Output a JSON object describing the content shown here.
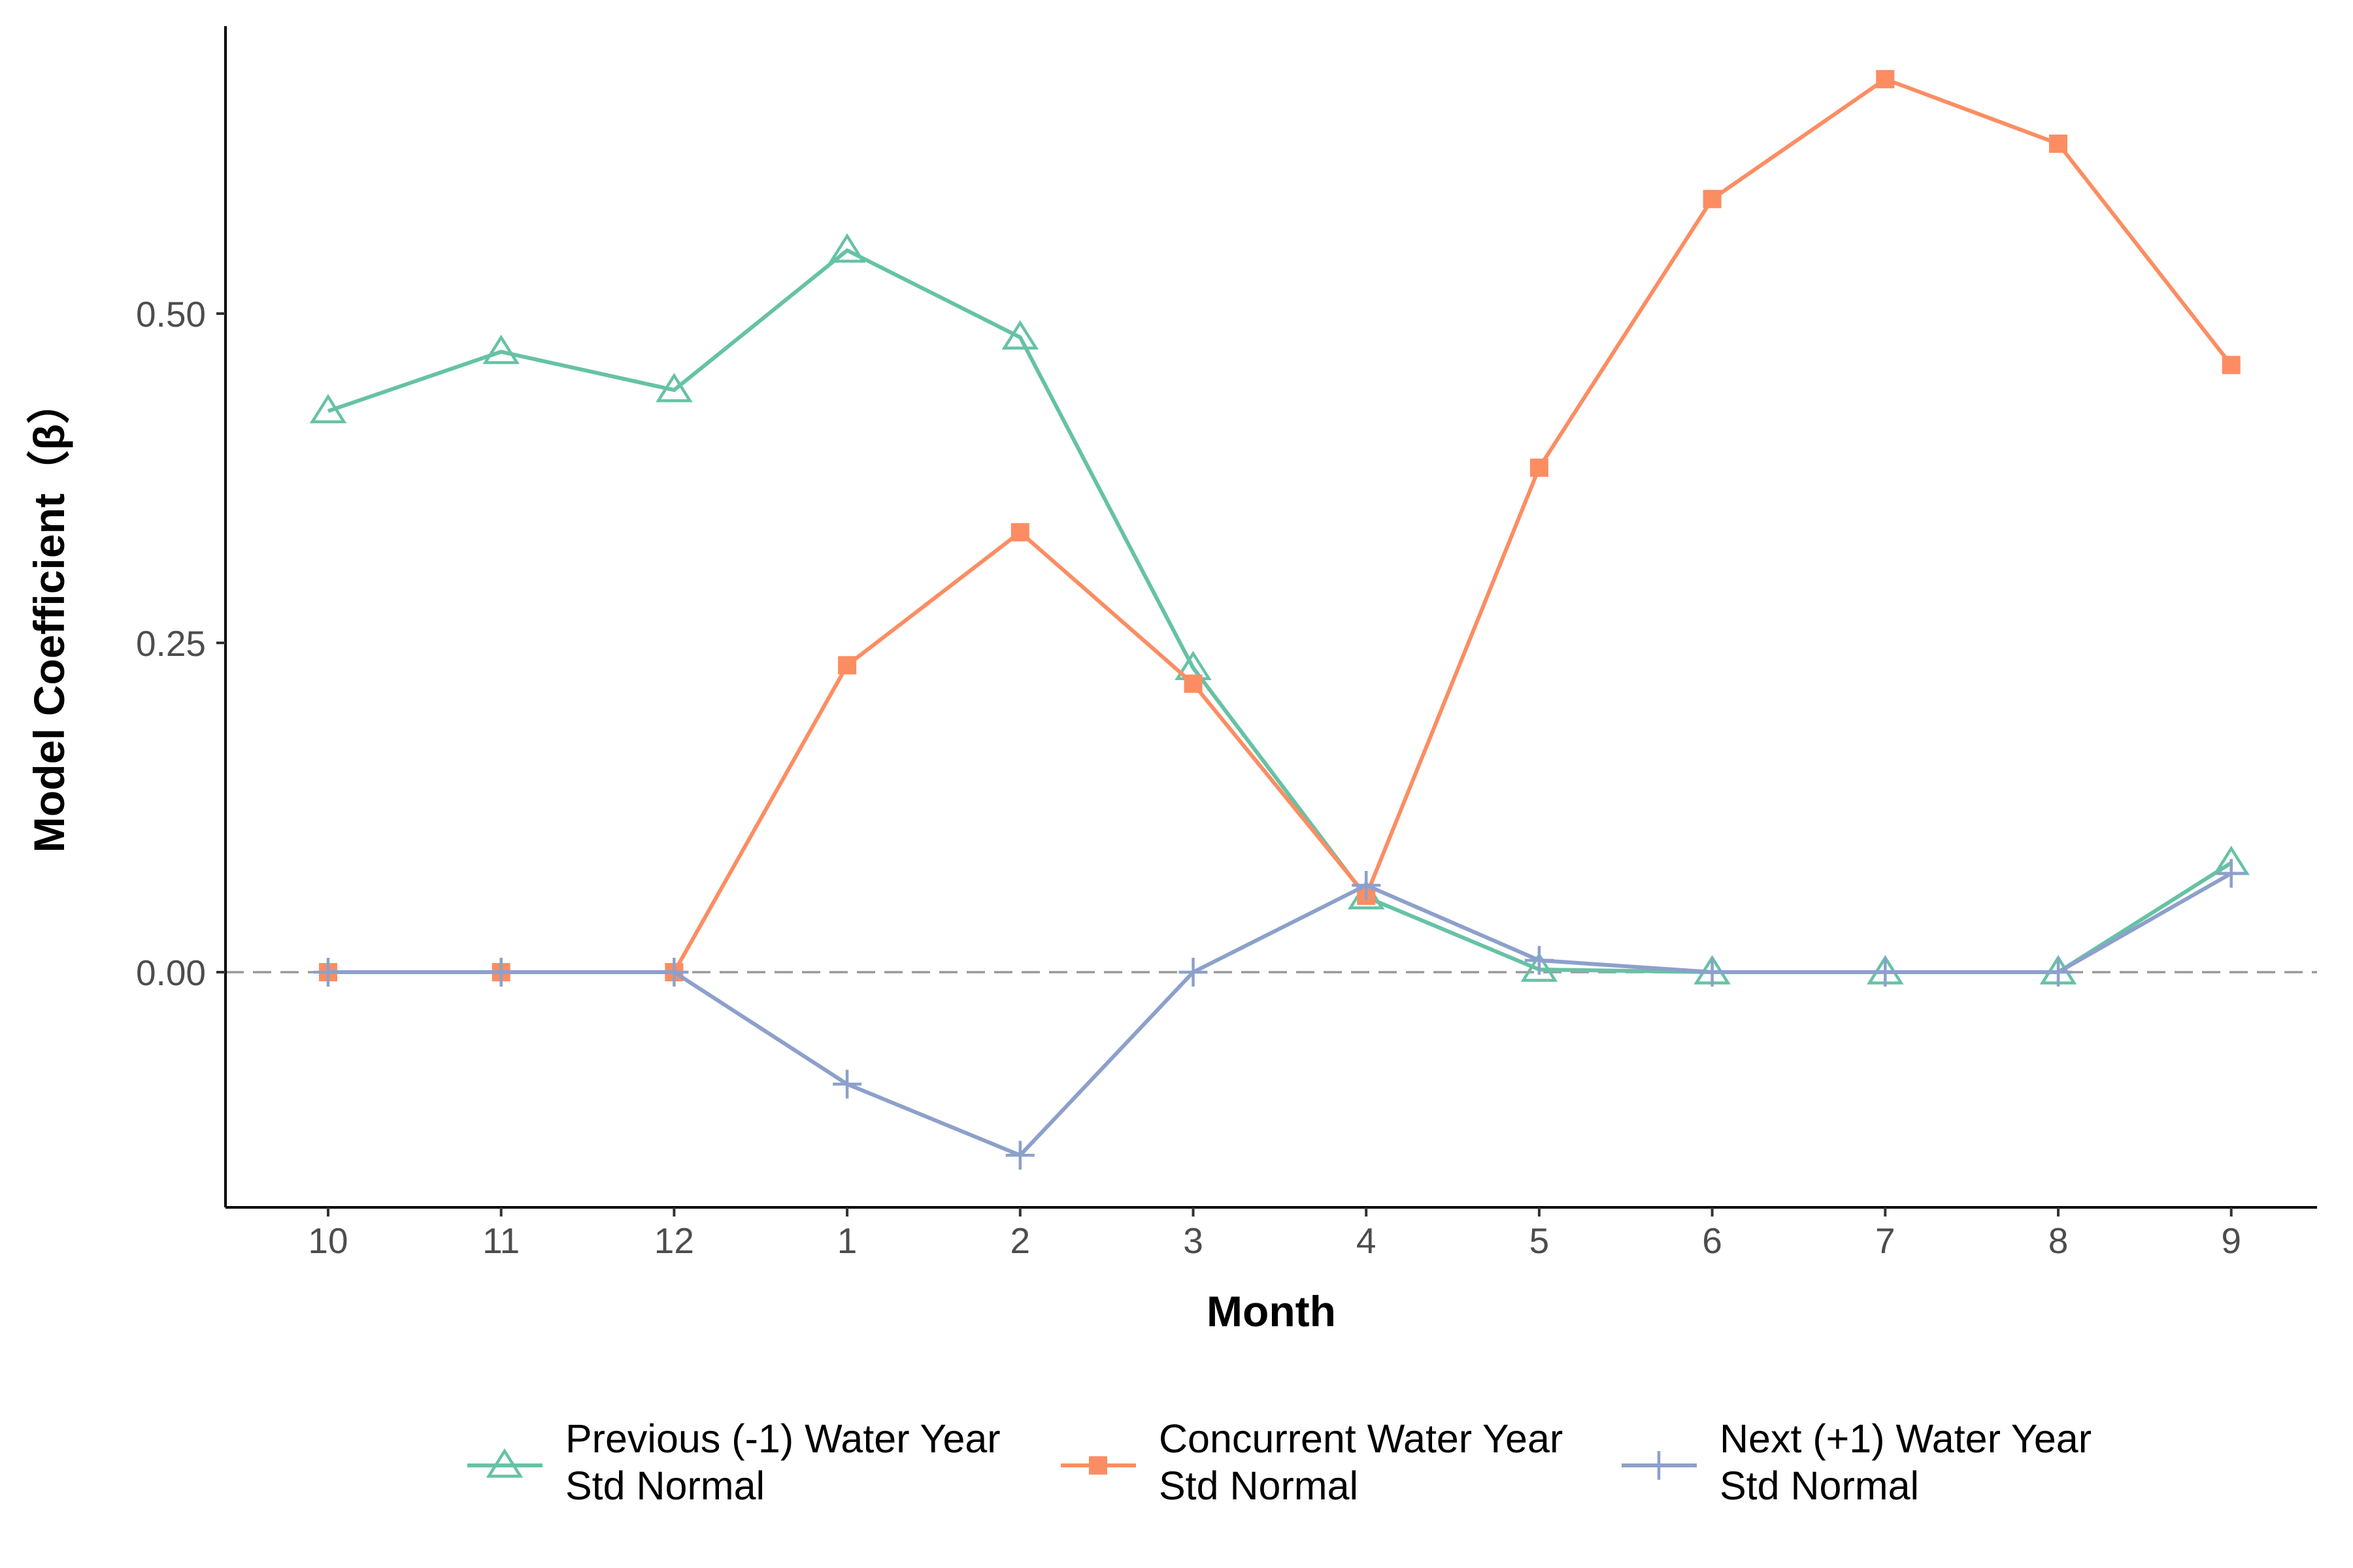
{
  "chart_data": {
    "type": "line",
    "title": "",
    "xlabel": "Month",
    "ylabel": "Model Coefficient（β）",
    "categories": [
      "10",
      "11",
      "12",
      "1",
      "2",
      "3",
      "4",
      "5",
      "6",
      "7",
      "8",
      "9"
    ],
    "yticks": [
      "0.00",
      "0.25",
      "0.50"
    ],
    "ylim": [
      -0.178,
      0.718
    ],
    "grid": false,
    "reference_line": {
      "y": 0,
      "style": "dashed",
      "color": "#999999"
    },
    "legend_position": "bottom",
    "series": [
      {
        "name": [
          "Previous (-1) Water Year",
          "Std Normal"
        ],
        "color": "#66c2a5",
        "marker": "open-triangle",
        "values": [
          0.426,
          0.471,
          0.442,
          0.548,
          0.482,
          0.231,
          0.057,
          0.002,
          0.0,
          0.0,
          0.0,
          0.083
        ]
      },
      {
        "name": [
          "Concurrent Water Year",
          "Std Normal"
        ],
        "color": "#fc8d62",
        "marker": "filled-square",
        "values": [
          0.0,
          0.0,
          0.0,
          0.233,
          0.334,
          0.219,
          0.058,
          0.383,
          0.587,
          0.678,
          0.629,
          0.461
        ]
      },
      {
        "name": [
          "Next (+1) Water Year",
          "Std Normal"
        ],
        "color": "#8da0cb",
        "marker": "plus",
        "values": [
          0.0,
          0.0,
          0.0,
          -0.085,
          -0.139,
          0.0,
          0.066,
          0.009,
          0.0,
          0.0,
          0.0,
          0.075
        ]
      }
    ]
  }
}
